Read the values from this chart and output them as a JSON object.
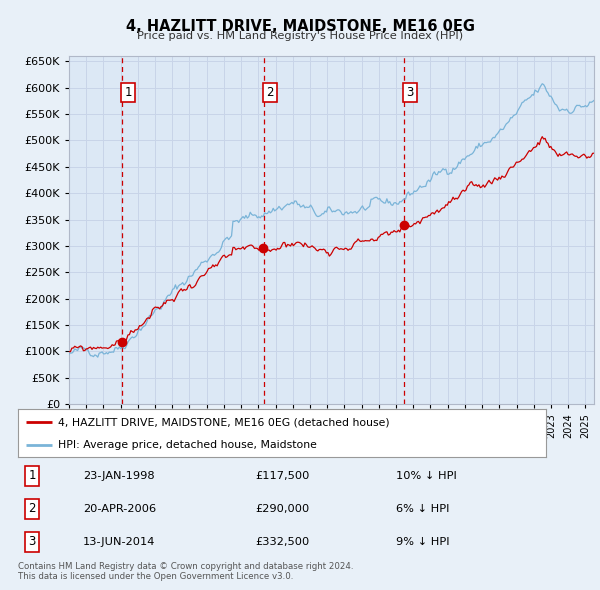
{
  "title": "4, HAZLITT DRIVE, MAIDSTONE, ME16 0EG",
  "subtitle": "Price paid vs. HM Land Registry's House Price Index (HPI)",
  "background_color": "#e8f0f8",
  "plot_bg_color": "#dce8f5",
  "grid_color": "#c8d4e8",
  "ylim": [
    0,
    660000
  ],
  "yticks": [
    0,
    50000,
    100000,
    150000,
    200000,
    250000,
    300000,
    350000,
    400000,
    450000,
    500000,
    550000,
    600000,
    650000
  ],
  "ytick_labels": [
    "£0",
    "£50K",
    "£100K",
    "£150K",
    "£200K",
    "£250K",
    "£300K",
    "£350K",
    "£400K",
    "£450K",
    "£500K",
    "£550K",
    "£600K",
    "£650K"
  ],
  "xlim_start": 1995.0,
  "xlim_end": 2025.5,
  "sale_year_floats": [
    1998.063,
    2006.303,
    2014.443
  ],
  "sale_prices": [
    117500,
    290000,
    332500
  ],
  "sale_labels": [
    "1",
    "2",
    "3"
  ],
  "legend_line1": "4, HAZLITT DRIVE, MAIDSTONE, ME16 0EG (detached house)",
  "legend_line2": "HPI: Average price, detached house, Maidstone",
  "table_entries": [
    {
      "num": "1",
      "date": "23-JAN-1998",
      "price": "£117,500",
      "pct": "10% ↓ HPI"
    },
    {
      "num": "2",
      "date": "20-APR-2006",
      "price": "£290,000",
      "pct": "6% ↓ HPI"
    },
    {
      "num": "3",
      "date": "13-JUN-2014",
      "price": "£332,500",
      "pct": "9% ↓ HPI"
    }
  ],
  "footer": [
    "Contains HM Land Registry data © Crown copyright and database right 2024.",
    "This data is licensed under the Open Government Licence v3.0."
  ],
  "hpi_color": "#7ab4d8",
  "price_color": "#cc0000",
  "vline_color": "#cc0000",
  "dot_color": "#cc0000"
}
